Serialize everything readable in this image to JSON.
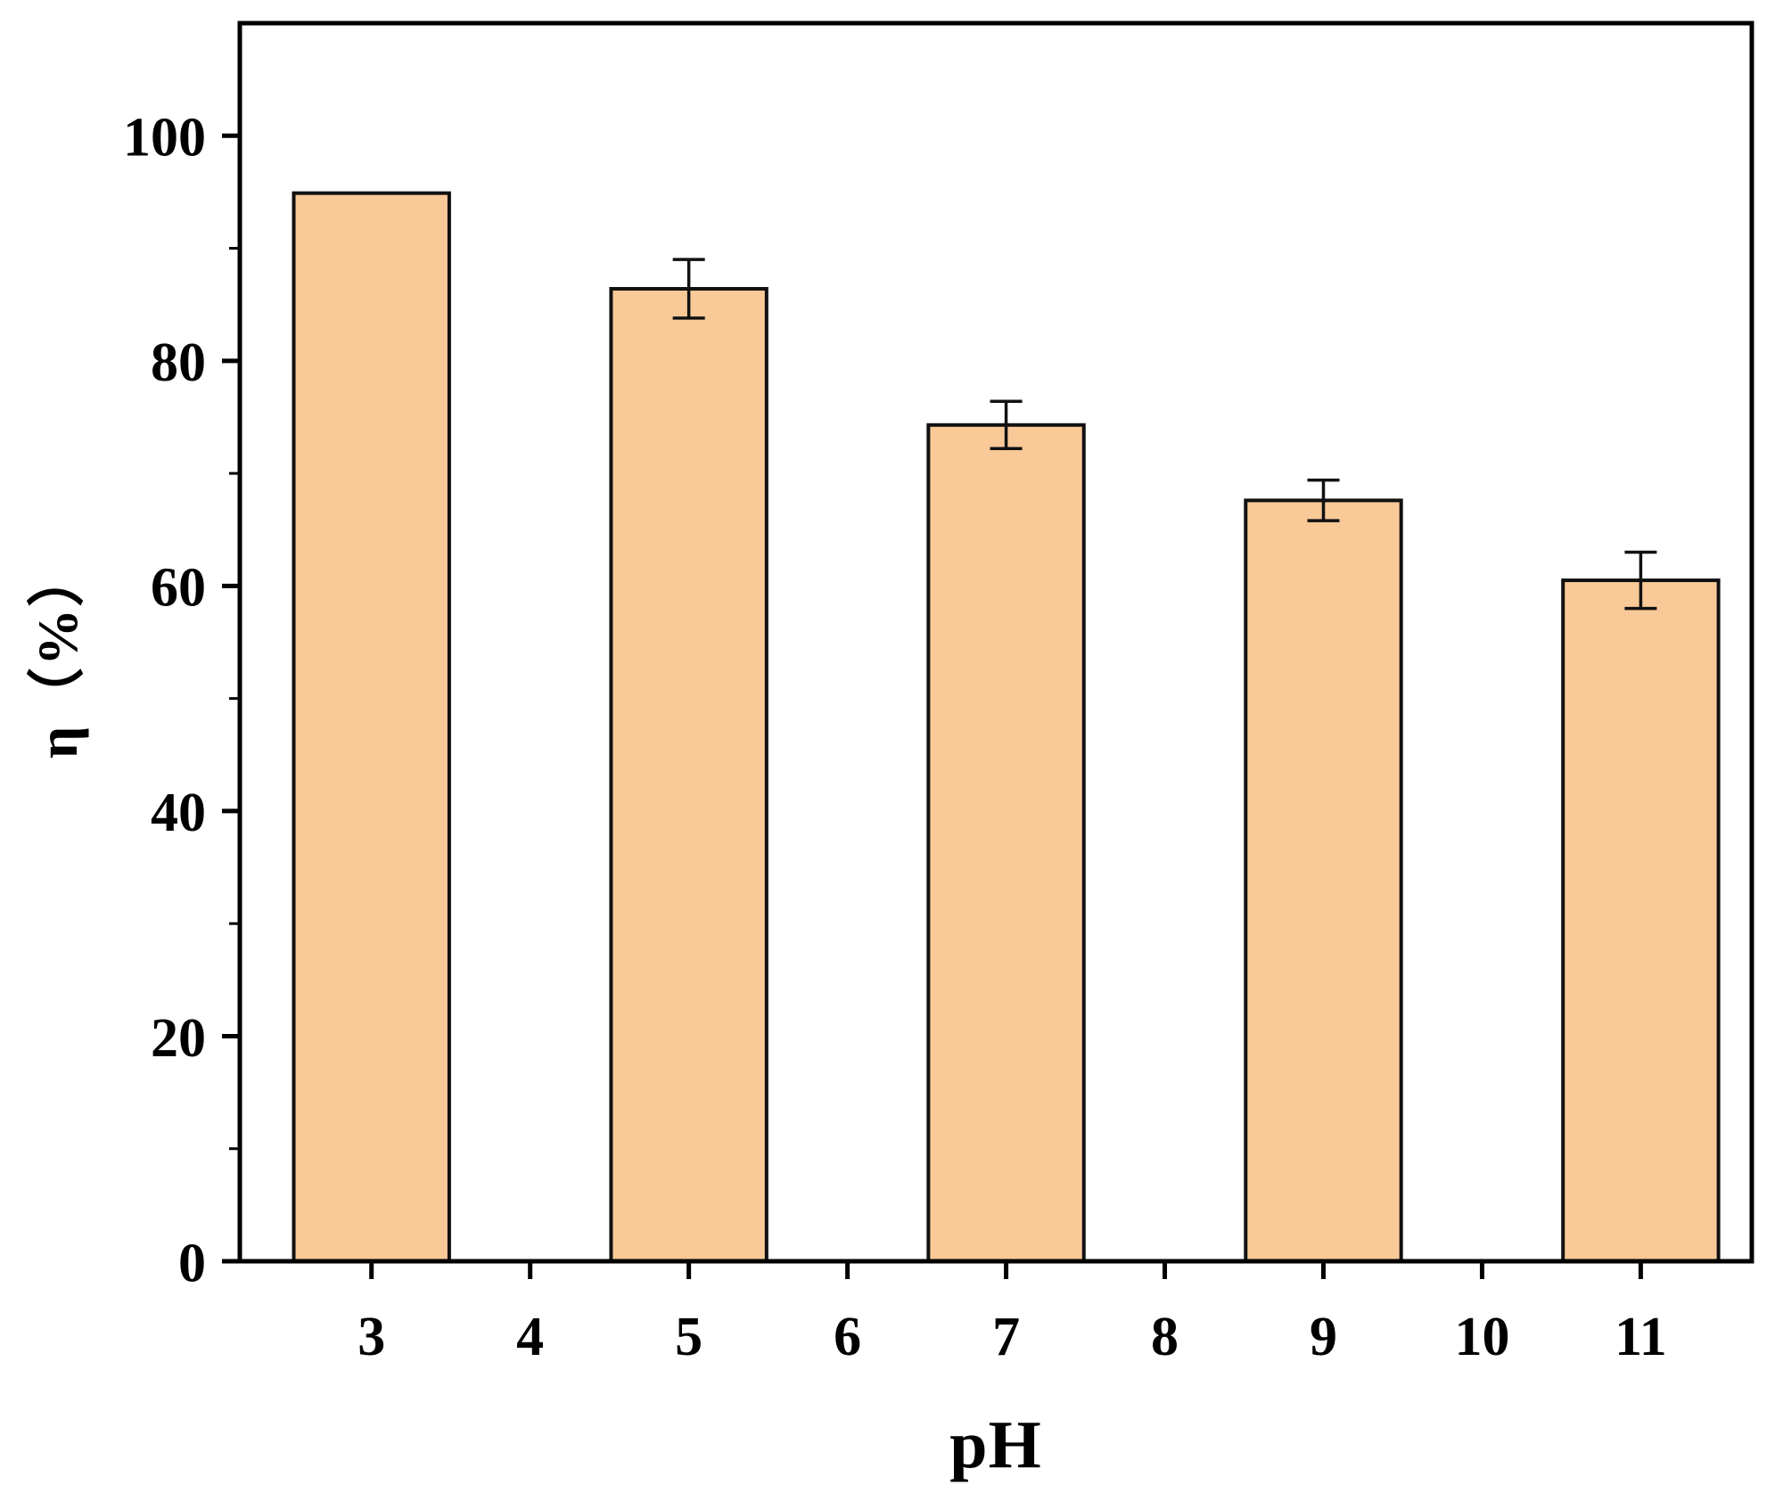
{
  "chart_data": {
    "type": "bar",
    "title": "",
    "xlabel": "pH",
    "ylabel": "η（%）",
    "x_ticks": [
      "3",
      "4",
      "5",
      "6",
      "7",
      "8",
      "9",
      "10",
      "11"
    ],
    "x_tick_values": [
      3,
      4,
      5,
      6,
      7,
      8,
      9,
      10,
      11
    ],
    "x_range": [
      2.17,
      11.7
    ],
    "ylim": [
      0,
      110
    ],
    "y_ticks": [
      0,
      20,
      40,
      60,
      80,
      100
    ],
    "y_minor_step": 10,
    "grid": false,
    "legend": false,
    "bar_width": 0.98,
    "bar_fill": "#F9C998",
    "bar_edge": "#111111",
    "error_color": "#111111",
    "bars": [
      {
        "x": 3,
        "label": "3",
        "value": 94.9,
        "error": 0
      },
      {
        "x": 5,
        "label": "5",
        "value": 86.4,
        "error": 2.6
      },
      {
        "x": 7,
        "label": "7",
        "value": 74.3,
        "error": 2.1
      },
      {
        "x": 9,
        "label": "9",
        "value": 67.6,
        "error": 1.8
      },
      {
        "x": 11,
        "label": "11",
        "value": 60.5,
        "error": 2.5
      }
    ]
  }
}
